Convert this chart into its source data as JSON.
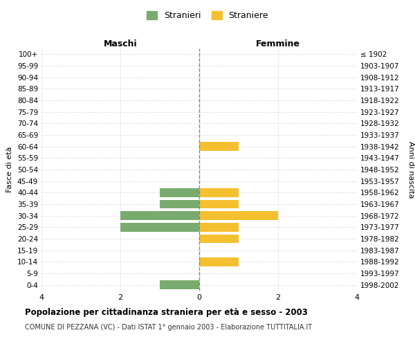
{
  "age_groups": [
    "100+",
    "95-99",
    "90-94",
    "85-89",
    "80-84",
    "75-79",
    "70-74",
    "65-69",
    "60-64",
    "55-59",
    "50-54",
    "45-49",
    "40-44",
    "35-39",
    "30-34",
    "25-29",
    "20-24",
    "15-19",
    "10-14",
    "5-9",
    "0-4"
  ],
  "birth_years": [
    "≤ 1902",
    "1903-1907",
    "1908-1912",
    "1913-1917",
    "1918-1922",
    "1923-1927",
    "1928-1932",
    "1933-1937",
    "1938-1942",
    "1943-1947",
    "1948-1952",
    "1953-1957",
    "1958-1962",
    "1963-1967",
    "1968-1972",
    "1973-1977",
    "1978-1982",
    "1983-1987",
    "1988-1992",
    "1993-1997",
    "1998-2002"
  ],
  "males": [
    0,
    0,
    0,
    0,
    0,
    0,
    0,
    0,
    0,
    0,
    0,
    0,
    1,
    1,
    2,
    2,
    0,
    0,
    0,
    0,
    1
  ],
  "females": [
    0,
    0,
    0,
    0,
    0,
    0,
    0,
    0,
    1,
    0,
    0,
    0,
    1,
    1,
    2,
    1,
    1,
    0,
    1,
    0,
    0
  ],
  "male_color": "#7aab6e",
  "female_color": "#f5c030",
  "title": "Popolazione per cittadinanza straniera per età e sesso - 2003",
  "subtitle": "COMUNE DI PEZZANA (VC) - Dati ISTAT 1° gennaio 2003 - Elaborazione TUTTITALIA.IT",
  "xlabel_left": "Maschi",
  "xlabel_right": "Femmine",
  "ylabel_left": "Fasce di età",
  "ylabel_right": "Anni di nascita",
  "legend_male": "Stranieri",
  "legend_female": "Straniere",
  "xlim": 4,
  "background_color": "#ffffff",
  "grid_color": "#cccccc",
  "bar_height": 0.75
}
